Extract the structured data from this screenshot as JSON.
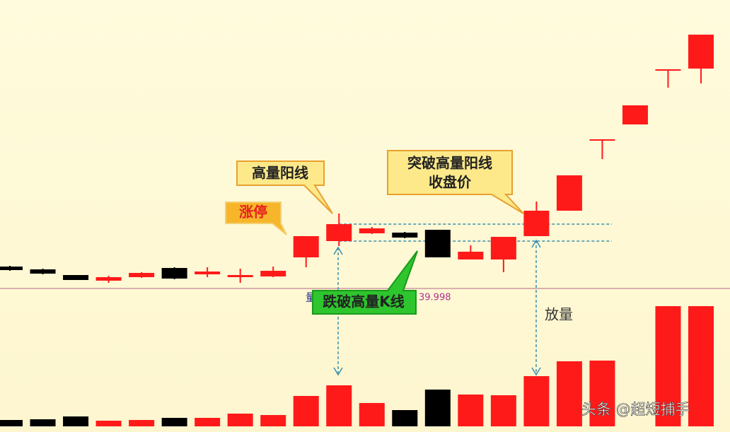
{
  "chart_data": {
    "type": "candlestick",
    "ylim": [
      0,
      100
    ],
    "volume_lim": [
      0,
      200
    ],
    "up_color": "#ff1a1a",
    "down_color": "#000000",
    "open": [
      7,
      6,
      4,
      2,
      3.25,
      6.5,
      4.25,
      3.25,
      3.5,
      10.25,
      16,
      18.75,
      19,
      20,
      9.5,
      9.5,
      17.75,
      26.75,
      51.5,
      57.25,
      76.5,
      77
    ],
    "close": [
      5.75,
      4.5,
      2.25,
      3.25,
      4.75,
      2.75,
      5.25,
      4,
      5.5,
      17.75,
      22,
      20.5,
      17.25,
      10.25,
      12.25,
      17.5,
      26.75,
      39.25,
      52,
      64,
      76.75,
      89
    ],
    "high": [
      7.25,
      6.25,
      4,
      3.75,
      5,
      6.75,
      6.75,
      6.25,
      7,
      17.75,
      25.75,
      21,
      19.25,
      20,
      14.5,
      17.5,
      30,
      39.25,
      52,
      64,
      76.75,
      89
    ],
    "low": [
      5.5,
      4.25,
      2.25,
      1.25,
      3,
      2.5,
      3.25,
      1.25,
      3.25,
      6.75,
      14.25,
      18.5,
      17,
      10.25,
      9.5,
      5,
      17.75,
      26.75,
      45,
      57.25,
      70.25,
      71.75
    ],
    "volume": [
      9,
      10,
      14,
      8,
      9,
      12,
      12,
      18,
      16,
      43,
      58,
      33,
      23,
      52,
      45,
      44,
      71,
      92,
      93,
      null,
      170,
      170
    ],
    "volume_label": "量",
    "volume_readout": "39.998",
    "annotations": {
      "high_volume_yang": "高量阳线",
      "limit_up": "涨停",
      "breakout": [
        "突破高量阳线",
        "收盘价"
      ],
      "breakdown": "跌破高量K线",
      "volume_up": "放量"
    },
    "watermark": "头条 @超短捕手"
  }
}
